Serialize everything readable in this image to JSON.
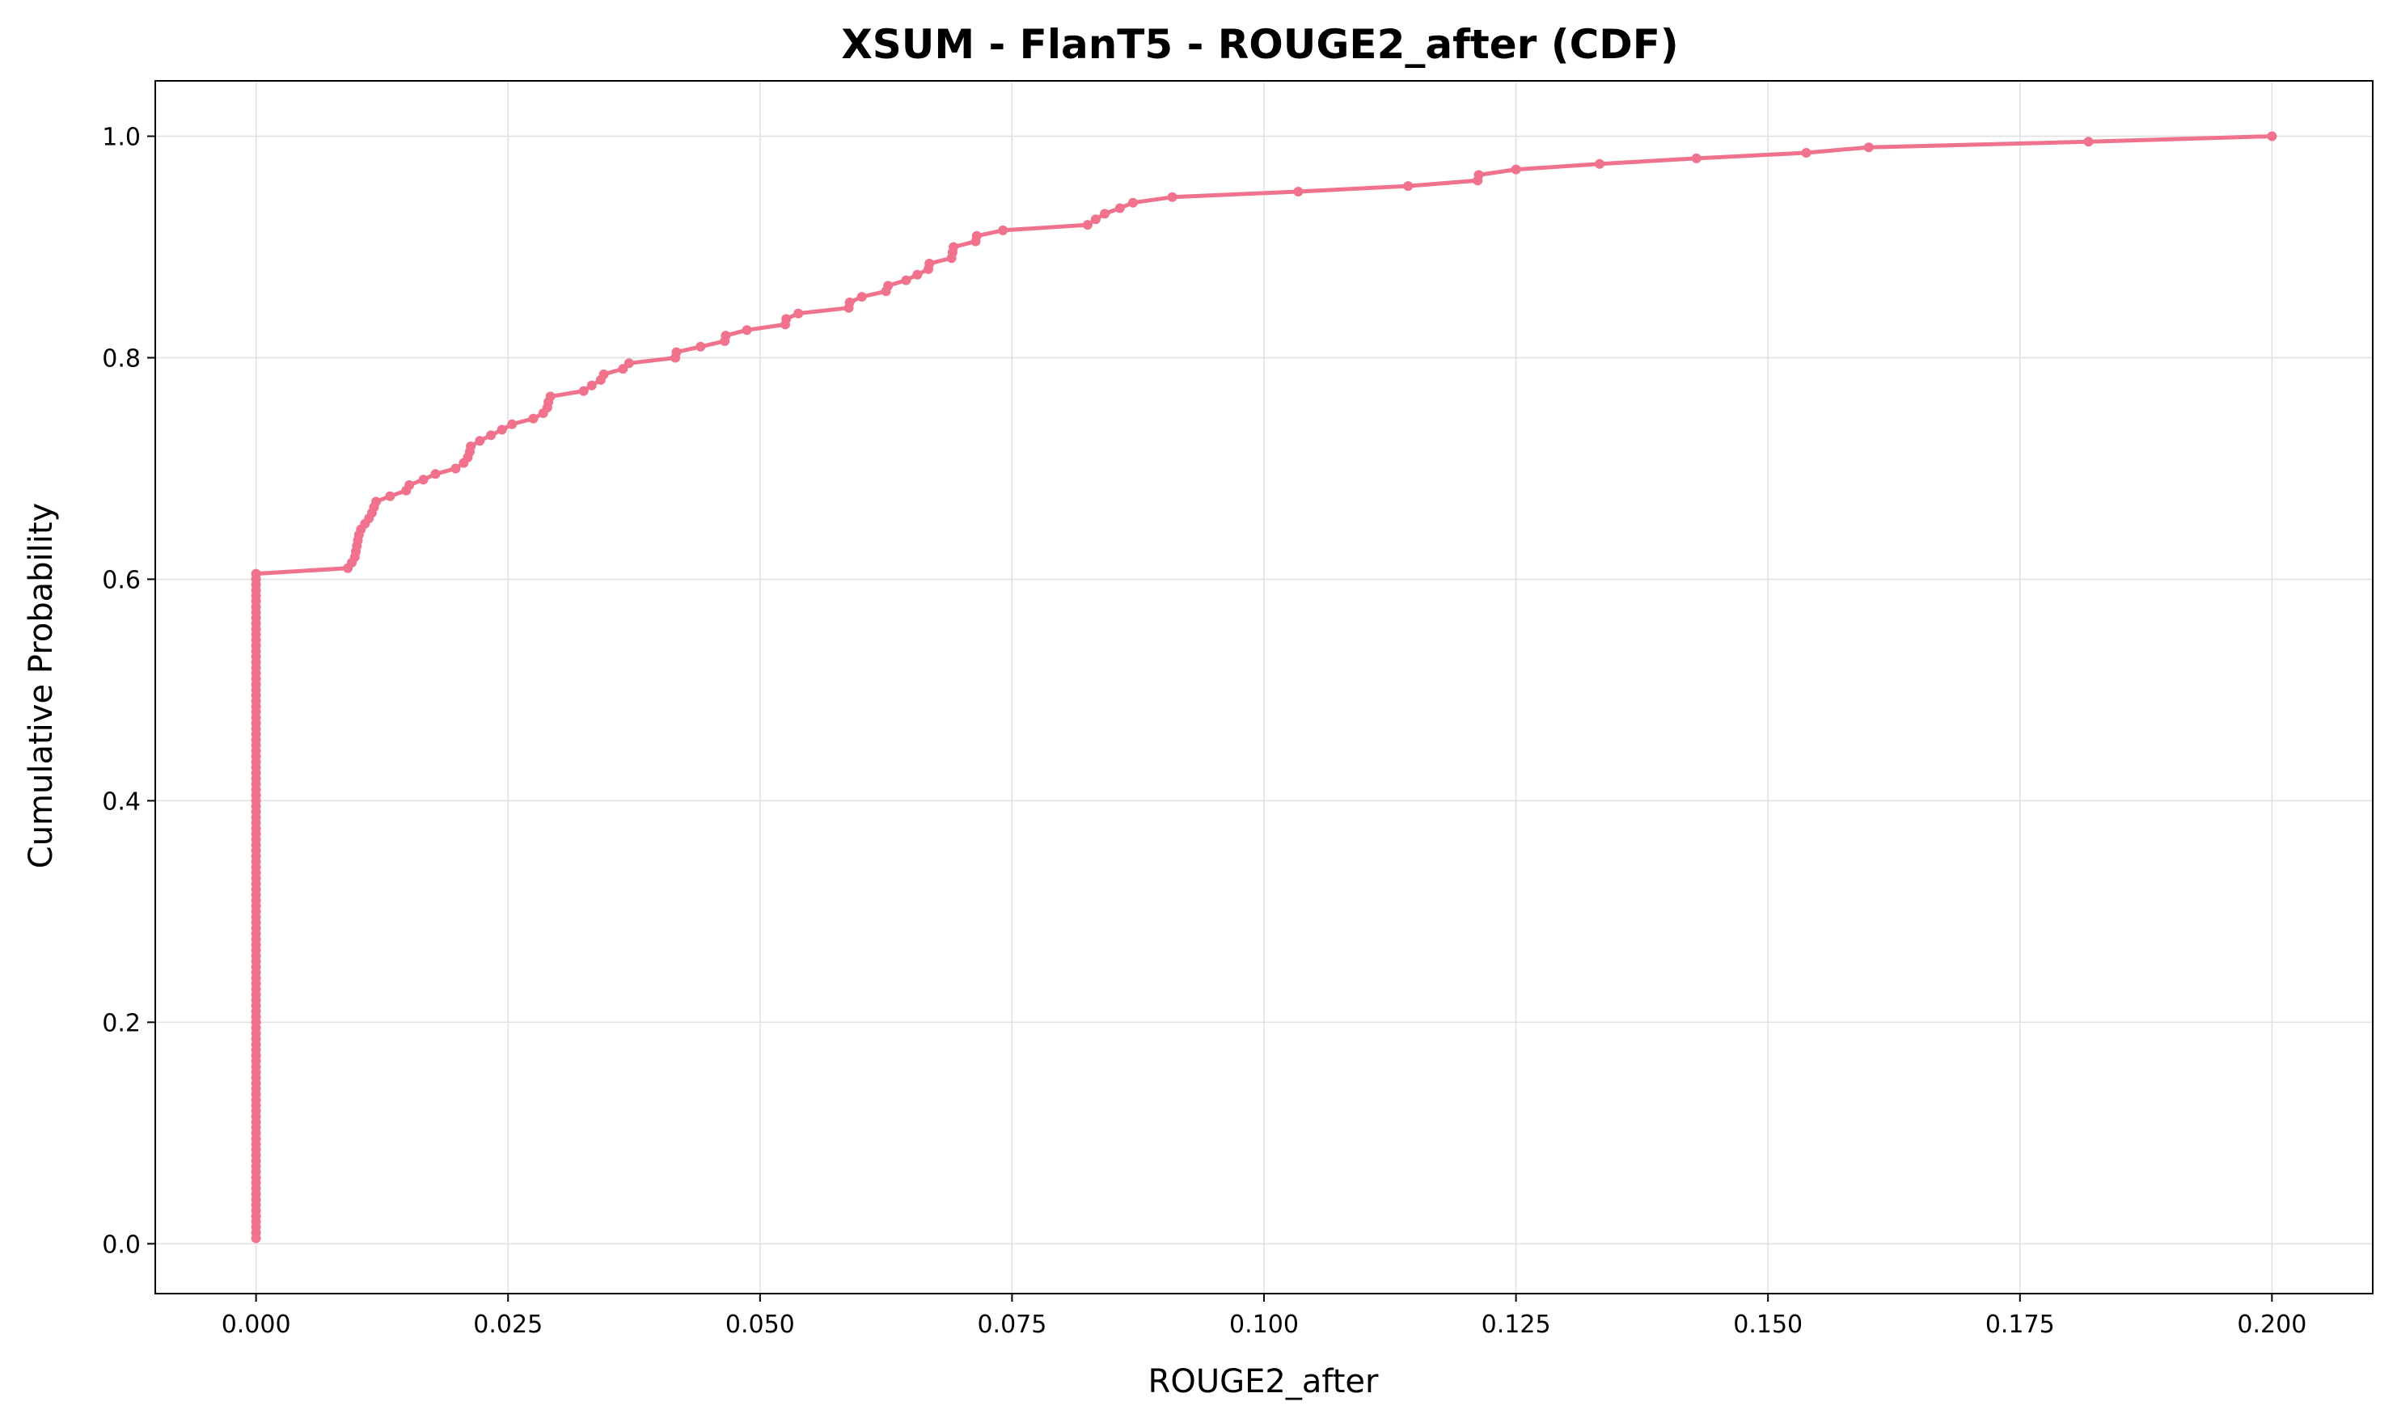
{
  "chart_data": {
    "type": "line",
    "title": "XSUM - FlanT5 - ROUGE2_after (CDF)",
    "xlabel": "ROUGE2_after",
    "ylabel": "Cumulative Probability",
    "xlim": [
      -0.01,
      0.21
    ],
    "ylim": [
      -0.045,
      1.05
    ],
    "xticks": [
      0.0,
      0.025,
      0.05,
      0.075,
      0.1,
      0.125,
      0.15,
      0.175,
      0.2
    ],
    "xtick_labels": [
      "0.000",
      "0.025",
      "0.050",
      "0.075",
      "0.100",
      "0.125",
      "0.150",
      "0.175",
      "0.200"
    ],
    "yticks": [
      0.0,
      0.2,
      0.4,
      0.6,
      0.8,
      1.0
    ],
    "ytick_labels": [
      "0.0",
      "0.2",
      "0.4",
      "0.6",
      "0.8",
      "1.0"
    ],
    "grid": true,
    "line_color": "#f0728c",
    "series": [
      {
        "name": "",
        "zero_run": {
          "x": 0.0,
          "y_start": 0.005,
          "y_end": 0.605,
          "step": 0.005
        },
        "points": [
          [
            0.0091,
            0.61
          ],
          [
            0.0095,
            0.615
          ],
          [
            0.0098,
            0.62
          ],
          [
            0.0099,
            0.625
          ],
          [
            0.01,
            0.63
          ],
          [
            0.0101,
            0.635
          ],
          [
            0.0102,
            0.64
          ],
          [
            0.0104,
            0.645
          ],
          [
            0.0108,
            0.65
          ],
          [
            0.0112,
            0.655
          ],
          [
            0.0115,
            0.66
          ],
          [
            0.0117,
            0.665
          ],
          [
            0.0119,
            0.67
          ],
          [
            0.0133,
            0.675
          ],
          [
            0.0149,
            0.68
          ],
          [
            0.0152,
            0.685
          ],
          [
            0.0166,
            0.69
          ],
          [
            0.0178,
            0.695
          ],
          [
            0.0198,
            0.7
          ],
          [
            0.0206,
            0.705
          ],
          [
            0.021,
            0.71
          ],
          [
            0.0212,
            0.715
          ],
          [
            0.0213,
            0.72
          ],
          [
            0.0222,
            0.725
          ],
          [
            0.0233,
            0.73
          ],
          [
            0.0244,
            0.735
          ],
          [
            0.0254,
            0.74
          ],
          [
            0.0275,
            0.745
          ],
          [
            0.0285,
            0.75
          ],
          [
            0.0289,
            0.755
          ],
          [
            0.029,
            0.76
          ],
          [
            0.0292,
            0.765
          ],
          [
            0.0325,
            0.77
          ],
          [
            0.0333,
            0.775
          ],
          [
            0.0342,
            0.78
          ],
          [
            0.0345,
            0.785
          ],
          [
            0.0364,
            0.79
          ],
          [
            0.037,
            0.795
          ],
          [
            0.0416,
            0.8
          ],
          [
            0.0417,
            0.805
          ],
          [
            0.0441,
            0.81
          ],
          [
            0.0465,
            0.815
          ],
          [
            0.0466,
            0.82
          ],
          [
            0.0487,
            0.825
          ],
          [
            0.0525,
            0.83
          ],
          [
            0.0526,
            0.835
          ],
          [
            0.0538,
            0.84
          ],
          [
            0.0588,
            0.845
          ],
          [
            0.0589,
            0.85
          ],
          [
            0.0601,
            0.855
          ],
          [
            0.0625,
            0.86
          ],
          [
            0.0627,
            0.865
          ],
          [
            0.0645,
            0.87
          ],
          [
            0.0656,
            0.875
          ],
          [
            0.0667,
            0.88
          ],
          [
            0.0668,
            0.885
          ],
          [
            0.069,
            0.89
          ],
          [
            0.0691,
            0.895
          ],
          [
            0.0692,
            0.9
          ],
          [
            0.0714,
            0.905
          ],
          [
            0.0715,
            0.91
          ],
          [
            0.0741,
            0.915
          ],
          [
            0.0825,
            0.92
          ],
          [
            0.0833,
            0.925
          ],
          [
            0.0842,
            0.93
          ],
          [
            0.0857,
            0.935
          ],
          [
            0.087,
            0.94
          ],
          [
            0.0909,
            0.945
          ],
          [
            0.1034,
            0.95
          ],
          [
            0.1143,
            0.955
          ],
          [
            0.1212,
            0.96
          ],
          [
            0.1213,
            0.965
          ],
          [
            0.125,
            0.97
          ],
          [
            0.1333,
            0.975
          ],
          [
            0.1429,
            0.98
          ],
          [
            0.1538,
            0.985
          ],
          [
            0.16,
            0.99
          ],
          [
            0.1818,
            0.995
          ],
          [
            0.2,
            1.0
          ]
        ]
      }
    ]
  }
}
